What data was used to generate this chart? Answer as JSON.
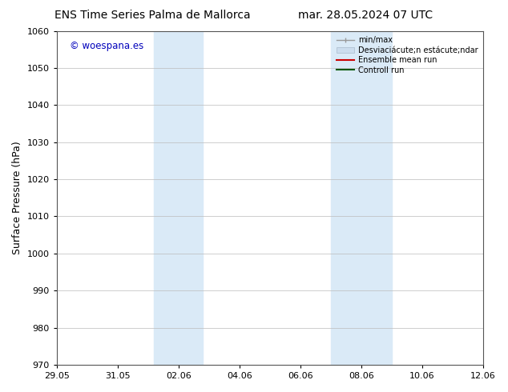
{
  "title_left": "ENS Time Series Palma de Mallorca",
  "title_right": "mar. 28.05.2024 07 UTC",
  "ylabel": "Surface Pressure (hPa)",
  "ylim": [
    970,
    1060
  ],
  "yticks": [
    970,
    980,
    990,
    1000,
    1010,
    1020,
    1030,
    1040,
    1050,
    1060
  ],
  "xtick_labels": [
    "29.05",
    "31.05",
    "02.06",
    "04.06",
    "06.06",
    "08.06",
    "10.06",
    "12.06"
  ],
  "xtick_positions": [
    0,
    2,
    4,
    6,
    8,
    10,
    12,
    14
  ],
  "xlim": [
    0,
    14
  ],
  "shaded_bands": [
    {
      "start": 3.0,
      "end": 4.5,
      "color": "#daeaf7"
    },
    {
      "start": 9.0,
      "end": 10.0,
      "color": "#daeaf7"
    },
    {
      "start": 10.0,
      "end": 11.0,
      "color": "#daeaf7"
    }
  ],
  "watermark_text": "© woespana.es",
  "watermark_color": "#0000bb",
  "legend_entries": [
    {
      "label": "min/max",
      "color": "#aaaaaa",
      "lw": 1.2
    },
    {
      "label": "Desviaciácute;n estácute;ndar",
      "color": "#ccddee",
      "lw": 8
    },
    {
      "label": "Ensemble mean run",
      "color": "#cc0000",
      "lw": 1.5
    },
    {
      "label": "Controll run",
      "color": "#005500",
      "lw": 1.5
    }
  ],
  "bg_color": "#ffffff",
  "grid_color": "#bbbbbb",
  "title_fontsize": 10,
  "axis_label_fontsize": 9,
  "tick_fontsize": 8
}
